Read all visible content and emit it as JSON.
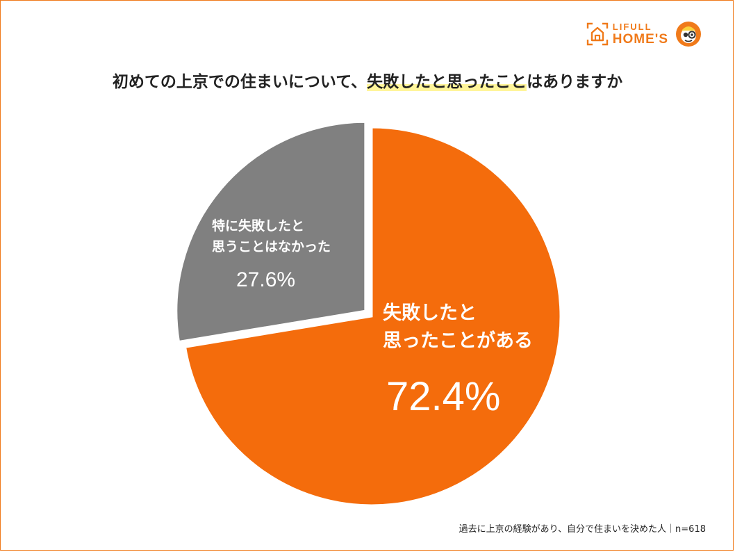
{
  "header": {
    "logo": {
      "top": "LIFULL",
      "bottom": "HOME'S"
    },
    "title_prefix": "初めての上京での住まいについて、",
    "title_highlight": "失敗したと思ったこと",
    "title_suffix": "はありますか"
  },
  "chart_data": {
    "type": "pie",
    "title": "初めての上京での住まいについて、失敗したと思ったことはありますか",
    "slices": [
      {
        "label_lines": [
          "失敗したと",
          "思ったことがある"
        ],
        "value": 72.4,
        "value_label": "72.4%",
        "color": "#f46c0c",
        "text_color": "#ffffff"
      },
      {
        "label_lines": [
          "特に失敗したと",
          "思うことはなかった"
        ],
        "value": 27.6,
        "value_label": "27.6%",
        "color": "#808080",
        "text_color": "#ffffff"
      }
    ]
  },
  "footnote": "過去に上京の経験があり、自分で住まいを決めた人｜n=618"
}
